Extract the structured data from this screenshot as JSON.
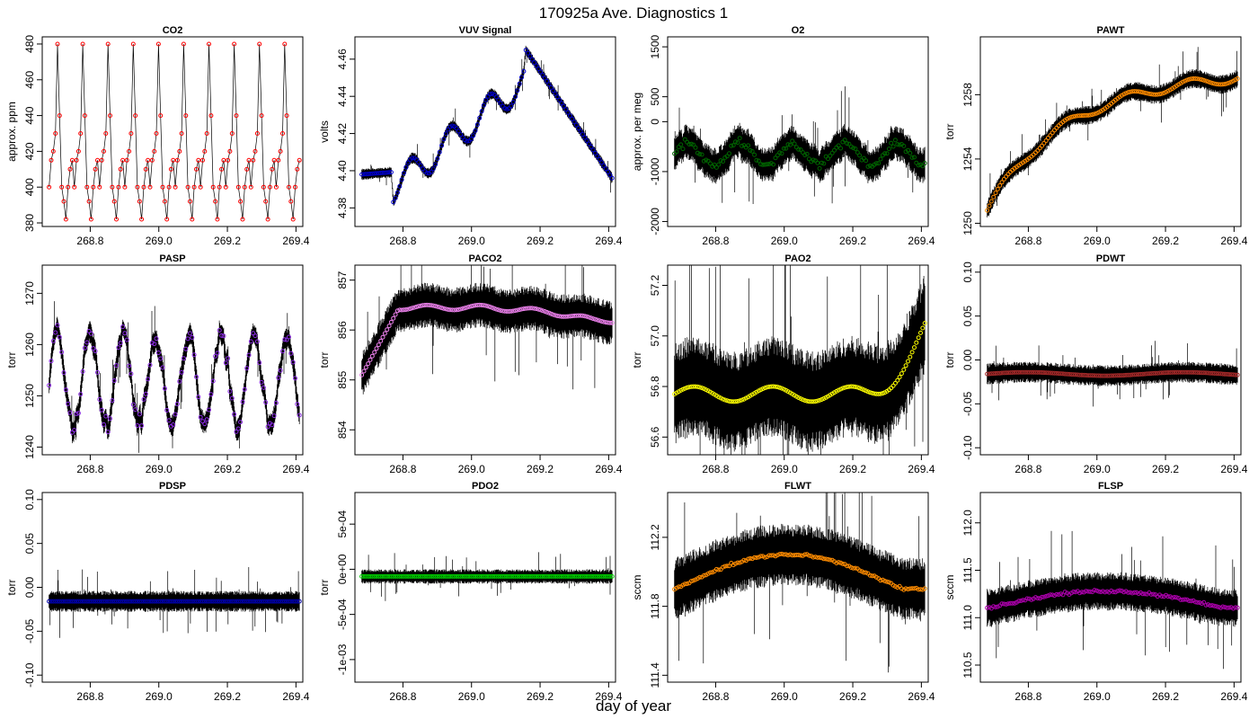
{
  "figure": {
    "title": "170925a   Ave. Diagnostics 1",
    "xlabel": "day of year"
  },
  "chart_data": [
    {
      "type": "line",
      "title": "CO2",
      "ylabel": "approx. ppm",
      "xlim": [
        268.66,
        269.42
      ],
      "ylim": [
        378,
        484
      ],
      "yticks": [
        380,
        400,
        420,
        440,
        460,
        480
      ],
      "xticks": [
        268.8,
        269.0,
        269.2,
        269.4
      ],
      "marker_color": "#ff0000",
      "pattern": "co2",
      "x_start": 268.68,
      "x_end": 269.41
    },
    {
      "type": "line",
      "title": "VUV Signal",
      "ylabel": "volts",
      "xlim": [
        268.66,
        269.42
      ],
      "ylim": [
        4.37,
        4.472
      ],
      "yticks": [
        4.38,
        4.4,
        4.42,
        4.44,
        4.46
      ],
      "xticks": [
        268.8,
        269.0,
        269.2,
        269.4
      ],
      "marker_color": "#0000cc",
      "pattern": "vuv",
      "x_start": 268.68,
      "x_end": 269.41
    },
    {
      "type": "line",
      "title": "O2",
      "ylabel": "approx. per meg",
      "xlim": [
        268.66,
        269.42
      ],
      "ylim": [
        -2100,
        1700
      ],
      "yticks": [
        -2000,
        -1000,
        0,
        500,
        1500
      ],
      "xticks": [
        268.8,
        269.0,
        269.2,
        269.4
      ],
      "marker_color": "#006400",
      "pattern": "o2",
      "x_start": 268.68,
      "x_end": 269.41
    },
    {
      "type": "line",
      "title": "PAWT",
      "ylabel": "torr",
      "xlim": [
        268.66,
        269.42
      ],
      "ylim": [
        1249.8,
        1261.6
      ],
      "yticks": [
        1250,
        1254,
        1258
      ],
      "xticks": [
        268.8,
        269.0,
        269.2,
        269.4
      ],
      "marker_color": "#ff8c00",
      "pattern": "pawt",
      "x_start": 268.68,
      "x_end": 269.41
    },
    {
      "type": "line",
      "title": "PASP",
      "ylabel": "torr",
      "xlim": [
        268.66,
        269.42
      ],
      "ylim": [
        1238.5,
        1275.5
      ],
      "yticks": [
        1240,
        1250,
        1260,
        1270
      ],
      "xticks": [
        268.8,
        269.0,
        269.2,
        269.4
      ],
      "marker_color": "#8a2be2",
      "pattern": "pasp",
      "x_start": 268.68,
      "x_end": 269.41
    },
    {
      "type": "line",
      "title": "PACO2",
      "ylabel": "torr",
      "xlim": [
        268.66,
        269.42
      ],
      "ylim": [
        853.5,
        857.3
      ],
      "yticks": [
        854,
        855,
        856,
        857
      ],
      "xticks": [
        268.8,
        269.0,
        269.2,
        269.4
      ],
      "marker_color": "#ee82ee",
      "pattern": "paco2",
      "x_start": 268.68,
      "x_end": 269.41
    },
    {
      "type": "line",
      "title": "PAO2",
      "ylabel": "torr",
      "xlim": [
        268.66,
        269.42
      ],
      "ylim": [
        56.53,
        57.28
      ],
      "yticks": [
        56.6,
        56.8,
        57.0,
        57.2
      ],
      "xticks": [
        268.8,
        269.0,
        269.2,
        269.4
      ],
      "marker_color": "#ffff00",
      "pattern": "pao2",
      "x_start": 268.68,
      "x_end": 269.41
    },
    {
      "type": "line",
      "title": "PDWT",
      "ylabel": "torr",
      "xlim": [
        268.66,
        269.42
      ],
      "ylim": [
        -0.108,
        0.108
      ],
      "yticks": [
        -0.1,
        -0.05,
        0.0,
        0.05,
        0.1
      ],
      "xticks": [
        268.8,
        269.0,
        269.2,
        269.4
      ],
      "marker_color": "#a52a2a",
      "pattern": "pdwt",
      "x_start": 268.68,
      "x_end": 269.41
    },
    {
      "type": "line",
      "title": "PDSP",
      "ylabel": "torr",
      "xlim": [
        268.66,
        269.42
      ],
      "ylim": [
        -0.108,
        0.108
      ],
      "yticks": [
        -0.1,
        -0.05,
        0.0,
        0.05,
        0.1
      ],
      "xticks": [
        268.8,
        269.0,
        269.2,
        269.4
      ],
      "marker_color": "#0000aa",
      "pattern": "pdsp",
      "x_start": 268.68,
      "x_end": 269.41
    },
    {
      "type": "line",
      "title": "PDO2",
      "ylabel": "torr",
      "xlim": [
        268.66,
        269.42
      ],
      "ylim": [
        -0.00125,
        0.00085
      ],
      "yticks": [
        -0.001,
        -0.0005,
        0,
        0.0005
      ],
      "ytick_labels": [
        "-1e-03",
        "-5e-04",
        "0e+00",
        "5e-04"
      ],
      "xticks": [
        268.8,
        269.0,
        269.2,
        269.4
      ],
      "marker_color": "#00cc00",
      "pattern": "pdo2",
      "x_start": 268.68,
      "x_end": 269.41
    },
    {
      "type": "line",
      "title": "FLWT",
      "ylabel": "sccm",
      "xlim": [
        268.66,
        269.42
      ],
      "ylim": [
        111.36,
        112.46
      ],
      "yticks": [
        111.4,
        111.8,
        112.2
      ],
      "xticks": [
        268.8,
        269.0,
        269.2,
        269.4
      ],
      "marker_color": "#ff8c00",
      "pattern": "flwt",
      "x_start": 268.68,
      "x_end": 269.41
    },
    {
      "type": "line",
      "title": "FLSP",
      "ylabel": "sccm",
      "xlim": [
        268.66,
        269.42
      ],
      "ylim": [
        110.32,
        112.32
      ],
      "yticks": [
        110.5,
        111.0,
        111.5,
        112.0
      ],
      "xticks": [
        268.8,
        269.0,
        269.2,
        269.4
      ],
      "marker_color": "#aa00aa",
      "pattern": "flsp",
      "x_start": 268.68,
      "x_end": 269.41
    }
  ]
}
